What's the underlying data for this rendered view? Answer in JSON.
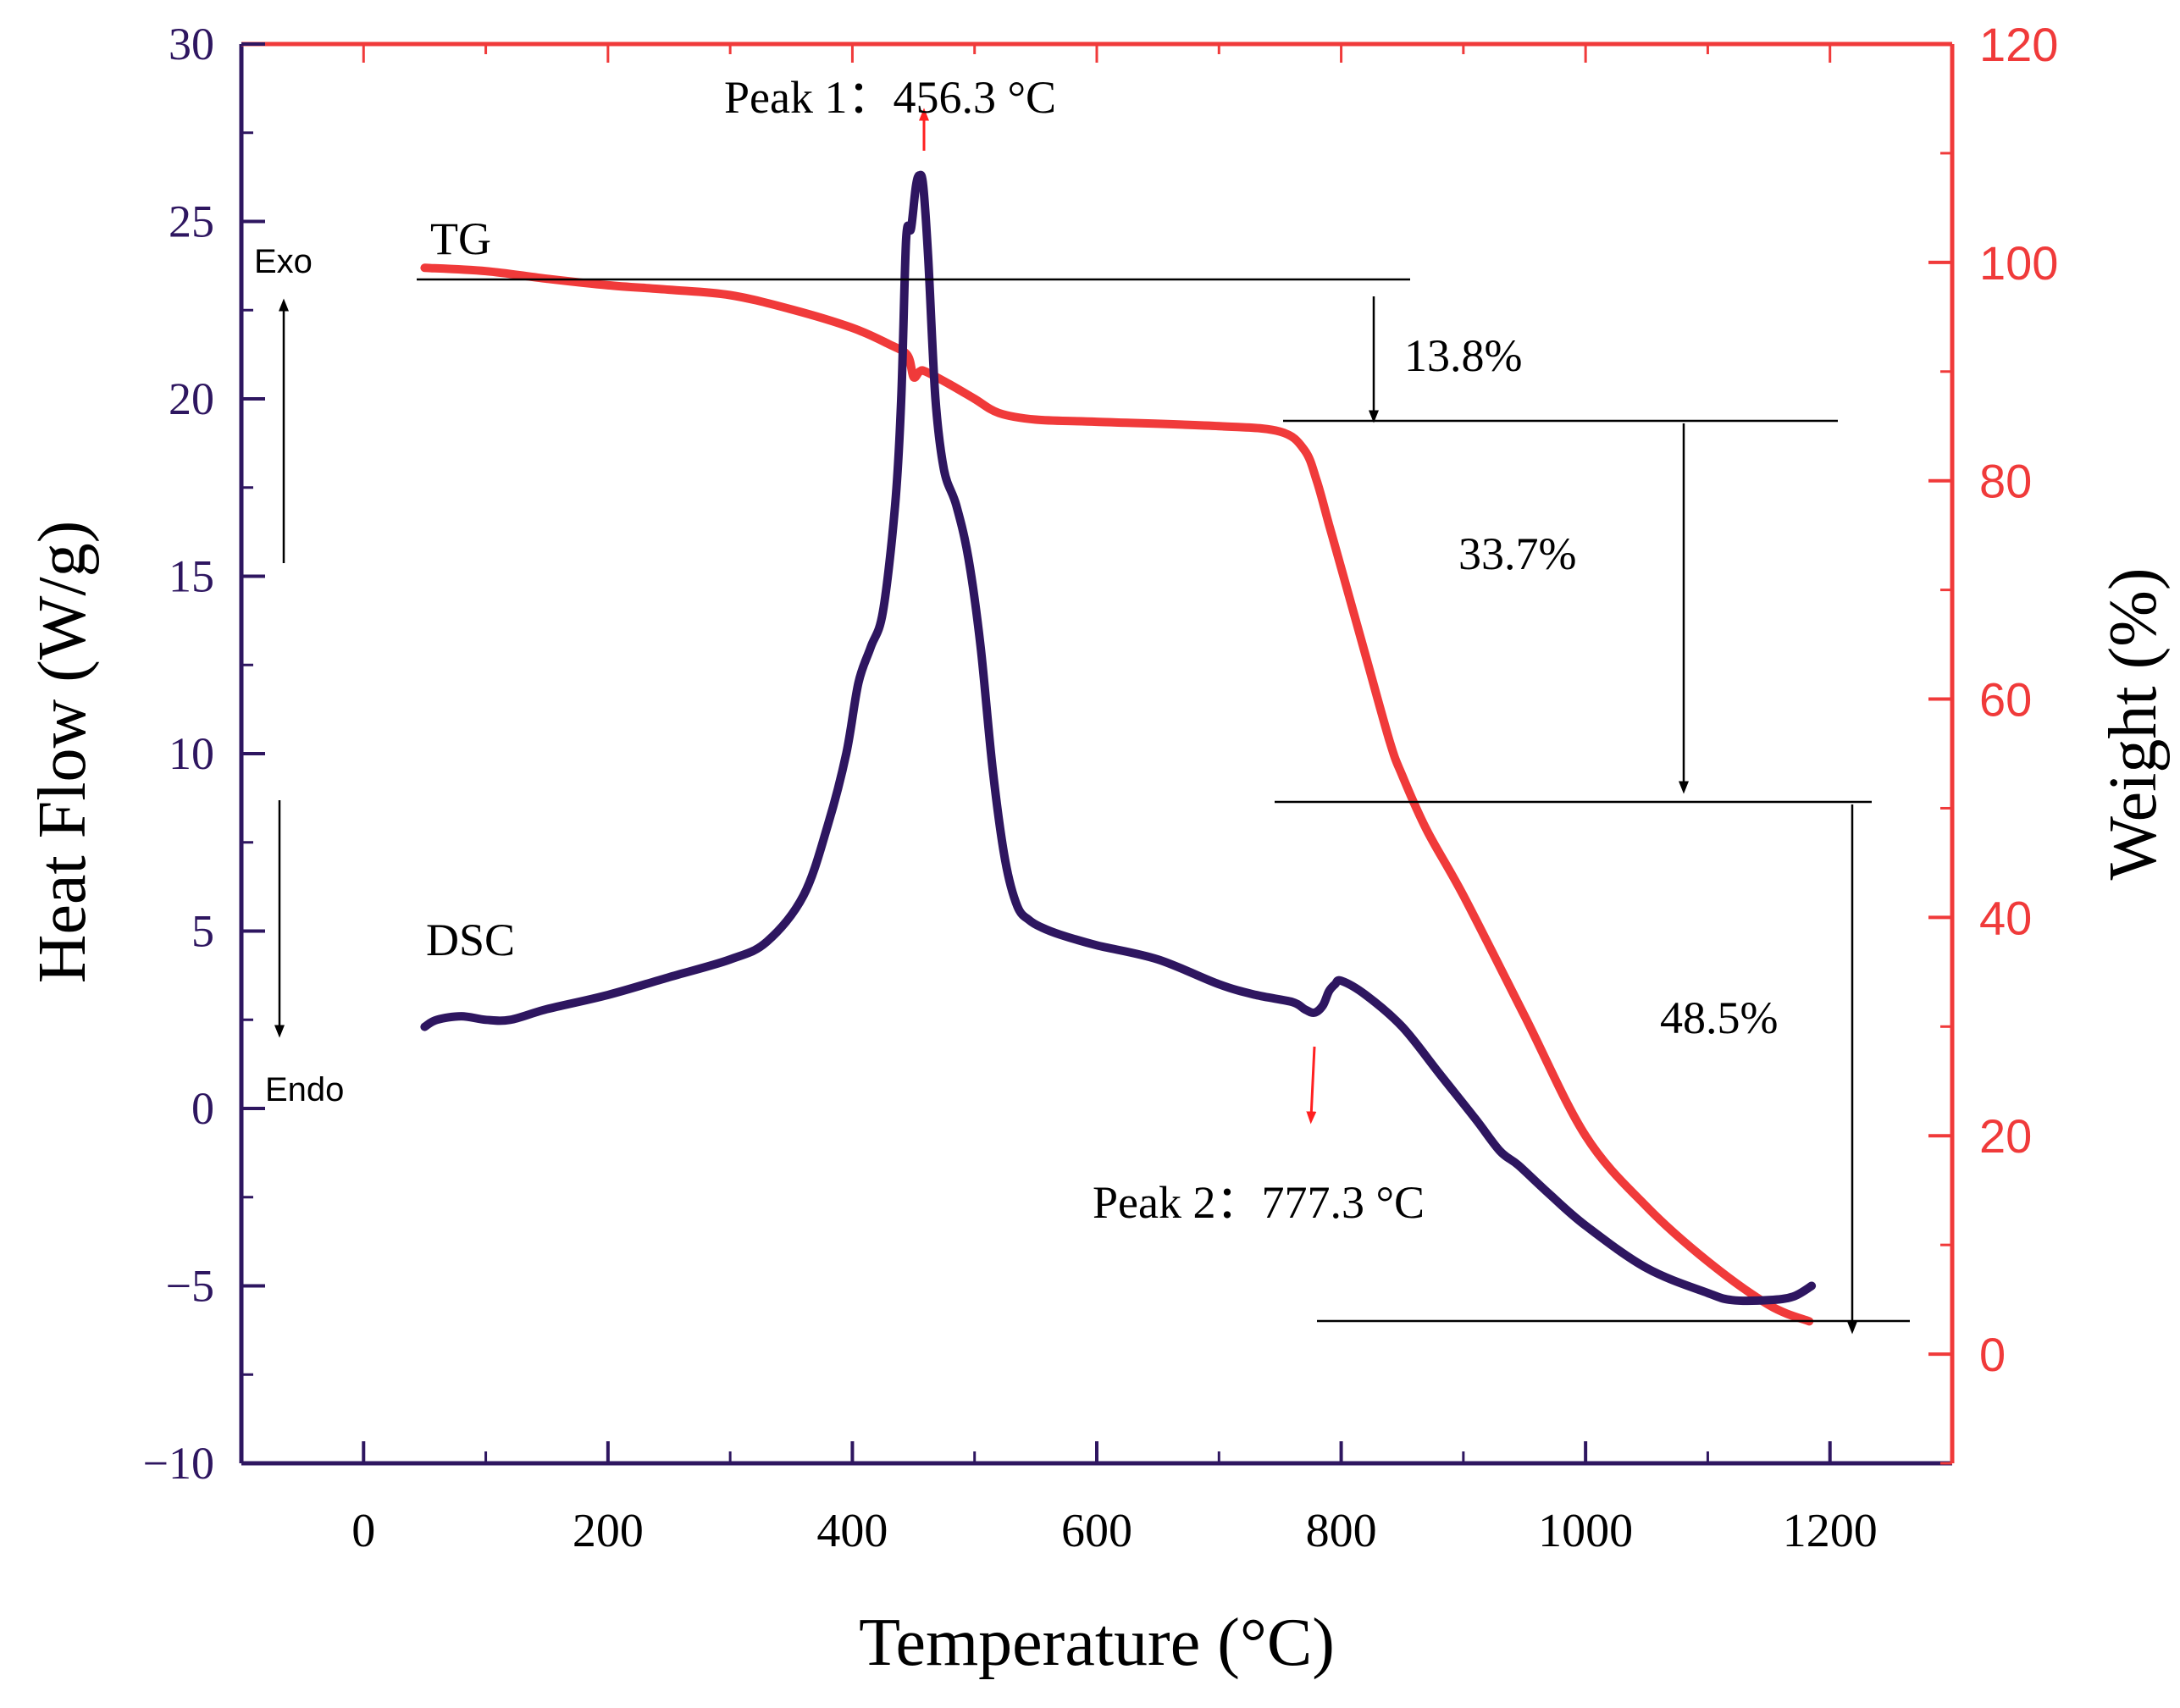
{
  "chart_data": {
    "type": "line",
    "x_axis": {
      "label": "Temperature (°C)",
      "range": [
        -100,
        1300
      ],
      "ticks": [
        0,
        200,
        400,
        600,
        800,
        1000,
        1200
      ],
      "tick_labels": [
        "0",
        "200",
        "400",
        "600",
        "800",
        "1000",
        "1200"
      ]
    },
    "y_left": {
      "label": "Heat Flow (W/g)",
      "range": [
        -10,
        30
      ],
      "ticks": [
        -10,
        -5,
        0,
        5,
        10,
        15,
        20,
        25,
        30
      ],
      "tick_labels": [
        "−10",
        "−5",
        "0",
        "5",
        "10",
        "15",
        "20",
        "25",
        "30"
      ],
      "color": "#2e1660"
    },
    "y_right": {
      "label": "Weight (%)",
      "range": [
        -10,
        120
      ],
      "ticks": [
        0,
        20,
        40,
        60,
        80,
        100,
        120
      ],
      "tick_labels": [
        "0",
        "20",
        "40",
        "60",
        "80",
        "100",
        "120"
      ],
      "color": "#f03a3a"
    },
    "series": [
      {
        "name": "DSC",
        "axis": "left",
        "color": "#2e1660",
        "x": [
          50,
          60,
          80,
          100,
          120,
          150,
          200,
          250,
          300,
          330,
          360,
          380,
          395,
          405,
          415,
          425,
          435,
          440,
          444,
          448,
          452,
          455,
          458,
          462,
          468,
          475,
          485,
          495,
          505,
          515,
          525,
          535,
          545,
          555,
          570,
          600,
          650,
          700,
          730,
          760,
          770,
          778,
          785,
          790,
          795,
          800,
          820,
          850,
          880,
          910,
          930,
          945,
          970,
          1000,
          1050,
          1100,
          1120,
          1150,
          1170,
          1185
        ],
        "y": [
          2.3,
          2.5,
          2.6,
          2.5,
          2.5,
          2.8,
          3.2,
          3.7,
          4.2,
          4.7,
          6.0,
          8.0,
          10.0,
          12.0,
          13.0,
          14.0,
          17.0,
          20.0,
          24.5,
          24.8,
          26.0,
          26.3,
          26.0,
          24.0,
          20.0,
          18.0,
          17.0,
          15.5,
          13.0,
          9.5,
          7.0,
          5.7,
          5.3,
          5.1,
          4.9,
          4.6,
          4.2,
          3.5,
          3.2,
          3.0,
          2.8,
          2.7,
          2.9,
          3.3,
          3.5,
          3.6,
          3.2,
          2.3,
          1.0,
          -0.3,
          -1.2,
          -1.6,
          -2.4,
          -3.3,
          -4.5,
          -5.2,
          -5.4,
          -5.4,
          -5.3,
          -5.0
        ]
      },
      {
        "name": "TG",
        "axis": "right",
        "color": "#f03a3a",
        "x": [
          50,
          100,
          150,
          200,
          250,
          300,
          350,
          400,
          430,
          445,
          450,
          455,
          460,
          480,
          500,
          520,
          550,
          600,
          700,
          750,
          770,
          780,
          790,
          800,
          820,
          840,
          850,
          870,
          900,
          950,
          1000,
          1050,
          1100,
          1150,
          1183
        ],
        "y": [
          99.5,
          99.2,
          98.5,
          97.9,
          97.5,
          97.0,
          95.7,
          94.0,
          92.5,
          91.5,
          89.5,
          90.0,
          90.0,
          88.8,
          87.5,
          86.2,
          85.6,
          85.4,
          85.0,
          84.5,
          82.8,
          80.0,
          76.0,
          72.0,
          64.0,
          56.0,
          53.0,
          48.0,
          42.0,
          31.0,
          20.0,
          13.5,
          8.5,
          4.5,
          3.0
        ]
      }
    ],
    "annotations": {
      "peak1": "Peak 1：456.3 °C",
      "peak2": "Peak 2：777.3 °C",
      "loss1": "13.8%",
      "loss2": "33.7%",
      "loss3": "48.5%",
      "tg_label": "TG",
      "dsc_label": "DSC",
      "exo": "Exo",
      "endo": "Endo"
    }
  }
}
